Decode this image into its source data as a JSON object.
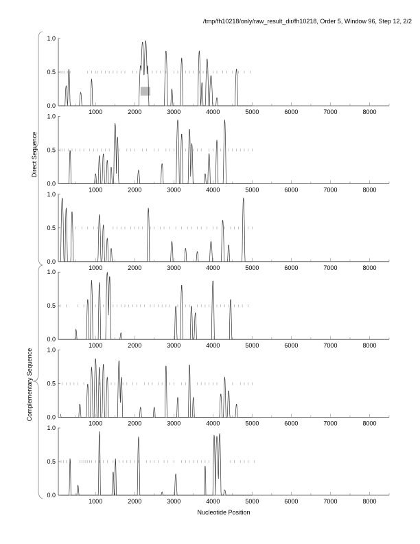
{
  "chart_data": {
    "type": "line",
    "title": "/tmp/fh10218/only/raw_result_dir/fh10218, Order 5, Window 96, Step 12, 2/2",
    "xlabel": "Nucleotide Position",
    "group_labels": [
      "Direct Sequence",
      "Complementary Sequence"
    ],
    "xlim": [
      50,
      8500
    ],
    "ylim": [
      0,
      1
    ],
    "xticks": [
      "1000",
      "2000",
      "3000",
      "4000",
      "5000",
      "6000",
      "7000",
      "8000"
    ],
    "yticks": [
      "0.0",
      "0.5",
      "1.0"
    ],
    "highlight": {
      "panel": 0,
      "x": [
        2150,
        2400
      ],
      "y": [
        0.15,
        0.28
      ]
    },
    "panels": [
      {
        "peaks": [
          [
            250,
            0.3,
            30
          ],
          [
            320,
            0.55,
            30
          ],
          [
            620,
            0.2,
            30
          ],
          [
            900,
            0.4,
            25
          ],
          [
            2150,
            0.6,
            40
          ],
          [
            2200,
            0.95,
            50
          ],
          [
            2280,
            0.97,
            50
          ],
          [
            2330,
            0.6,
            30
          ],
          [
            2800,
            0.82,
            40
          ],
          [
            2950,
            0.25,
            25
          ],
          [
            3200,
            0.72,
            30
          ],
          [
            3650,
            0.82,
            35
          ],
          [
            3720,
            0.35,
            25
          ],
          [
            3850,
            0.7,
            40
          ],
          [
            3950,
            0.45,
            40
          ],
          [
            4100,
            0.12,
            25
          ],
          [
            4600,
            0.55,
            35
          ]
        ],
        "stops": [
          120,
          170,
          220,
          280,
          350,
          800,
          900,
          1000,
          1050,
          1150,
          1250,
          1350,
          1450,
          1550,
          1650,
          1750,
          1950,
          2050,
          2450,
          2550,
          2650,
          2800,
          3000,
          3100,
          3300,
          3400,
          3500,
          3650,
          3750,
          3850,
          4000,
          4100,
          4250,
          4350,
          4500,
          4650,
          4800,
          4950
        ]
      },
      {
        "peaks": [
          [
            350,
            0.5,
            25
          ],
          [
            1000,
            0.15,
            25
          ],
          [
            1100,
            0.42,
            30
          ],
          [
            1200,
            0.45,
            30
          ],
          [
            1300,
            0.35,
            25
          ],
          [
            1400,
            0.25,
            25
          ],
          [
            1500,
            0.9,
            35
          ],
          [
            1560,
            0.7,
            30
          ],
          [
            2100,
            0.2,
            30
          ],
          [
            2700,
            0.3,
            30
          ],
          [
            3100,
            0.95,
            40
          ],
          [
            3200,
            0.75,
            30
          ],
          [
            3400,
            0.82,
            30
          ],
          [
            3460,
            0.6,
            30
          ],
          [
            3800,
            0.15,
            25
          ],
          [
            3900,
            0.45,
            30
          ],
          [
            4100,
            0.65,
            30
          ],
          [
            4300,
            0.95,
            35
          ]
        ],
        "stops": [
          100,
          150,
          200,
          300,
          400,
          500,
          600,
          700,
          850,
          950,
          1050,
          1150,
          1250,
          1350,
          1600,
          1800,
          1900,
          2000,
          2200,
          2300,
          2500,
          2600,
          2800,
          2900,
          3000,
          3300,
          3500,
          3600,
          3700,
          3900,
          4000,
          4200,
          4400,
          4500,
          4600,
          4700,
          4800,
          4900,
          5000
        ]
      },
      {
        "peaks": [
          [
            150,
            0.95,
            40
          ],
          [
            250,
            0.8,
            30
          ],
          [
            400,
            0.75,
            30
          ],
          [
            1100,
            0.7,
            35
          ],
          [
            1200,
            0.55,
            30
          ],
          [
            1300,
            0.35,
            25
          ],
          [
            1400,
            0.2,
            25
          ],
          [
            2350,
            0.8,
            30
          ],
          [
            2950,
            0.3,
            30
          ],
          [
            3300,
            0.2,
            25
          ],
          [
            3600,
            0.15,
            25
          ],
          [
            3950,
            0.3,
            35
          ],
          [
            4250,
            0.62,
            35
          ],
          [
            4400,
            0.25,
            25
          ],
          [
            4780,
            0.95,
            35
          ]
        ],
        "stops": [
          500,
          650,
          800,
          950,
          1050,
          1450,
          1550,
          1650,
          1750,
          1900,
          2000,
          2100,
          2200,
          2400,
          2500,
          2650,
          2750,
          2900,
          3050,
          3200,
          3350,
          3450,
          3600,
          3700,
          3850,
          4000,
          4100,
          4300,
          4450,
          4550,
          4650,
          4800,
          4900,
          5000
        ]
      },
      {
        "peaks": [
          [
            500,
            0.15,
            25
          ],
          [
            800,
            0.6,
            30
          ],
          [
            900,
            0.88,
            30
          ],
          [
            1100,
            0.85,
            30
          ],
          [
            1300,
            1.0,
            40
          ],
          [
            1360,
            0.95,
            30
          ],
          [
            1650,
            0.1,
            25
          ],
          [
            3050,
            0.5,
            30
          ],
          [
            3200,
            0.82,
            30
          ],
          [
            3450,
            0.5,
            30
          ],
          [
            3550,
            0.4,
            30
          ],
          [
            4000,
            0.88,
            35
          ],
          [
            4450,
            0.6,
            30
          ]
        ],
        "stops": [
          100,
          250,
          550,
          700,
          1000,
          1200,
          1450,
          1550,
          1650,
          1750,
          1850,
          1950,
          2050,
          2150,
          2250,
          2400,
          2500,
          2600,
          2700,
          2800,
          2900,
          3100,
          3300,
          3400,
          3600,
          3700,
          3800,
          3900,
          4100,
          4200,
          4300,
          4400,
          4550,
          4650,
          4750,
          4900
        ]
      },
      {
        "peaks": [
          [
            100,
            0.05,
            20
          ],
          [
            600,
            0.2,
            25
          ],
          [
            800,
            0.5,
            30
          ],
          [
            900,
            0.75,
            30
          ],
          [
            1000,
            0.88,
            35
          ],
          [
            1100,
            0.75,
            30
          ],
          [
            1200,
            0.8,
            30
          ],
          [
            1300,
            0.6,
            30
          ],
          [
            1600,
            0.85,
            35
          ],
          [
            1660,
            0.6,
            30
          ],
          [
            2150,
            0.15,
            25
          ],
          [
            2500,
            0.15,
            25
          ],
          [
            2800,
            0.78,
            25
          ],
          [
            3100,
            0.3,
            25
          ],
          [
            3400,
            0.8,
            25
          ],
          [
            3500,
            0.3,
            25
          ],
          [
            4200,
            0.35,
            30
          ],
          [
            4300,
            0.6,
            30
          ],
          [
            4400,
            0.4,
            30
          ],
          [
            4600,
            0.2,
            25
          ]
        ],
        "stops": [
          150,
          250,
          350,
          450,
          550,
          700,
          1100,
          1400,
          1500,
          1700,
          1800,
          1950,
          2050,
          2250,
          2350,
          2450,
          2600,
          2700,
          2900,
          3000,
          3200,
          3300,
          3600,
          3700,
          3800,
          3900,
          4000,
          4100,
          4500,
          4700,
          4800,
          4900,
          5000
        ]
      },
      {
        "peaks": [
          [
            350,
            0.55,
            20
          ],
          [
            550,
            0.15,
            25
          ],
          [
            1100,
            0.95,
            25
          ],
          [
            1450,
            0.35,
            25
          ],
          [
            1510,
            0.55,
            20
          ],
          [
            2100,
            0.87,
            30
          ],
          [
            2700,
            0.05,
            20
          ],
          [
            3050,
            0.32,
            30
          ],
          [
            3800,
            0.45,
            20
          ],
          [
            4030,
            0.9,
            30
          ],
          [
            4100,
            0.88,
            40
          ],
          [
            4170,
            0.92,
            35
          ],
          [
            4300,
            0.08,
            30
          ]
        ],
        "stops": [
          120,
          180,
          250,
          350,
          600,
          650,
          700,
          750,
          800,
          850,
          900,
          1000,
          1100,
          1200,
          1300,
          1450,
          1600,
          1700,
          1800,
          1900,
          2000,
          2100,
          2300,
          2400,
          2500,
          2600,
          2750,
          2850,
          3000,
          3200,
          3300,
          3400,
          3500,
          3600,
          3700,
          3800,
          3900,
          4450,
          4550,
          4700,
          4800,
          4900,
          5050
        ]
      }
    ]
  }
}
